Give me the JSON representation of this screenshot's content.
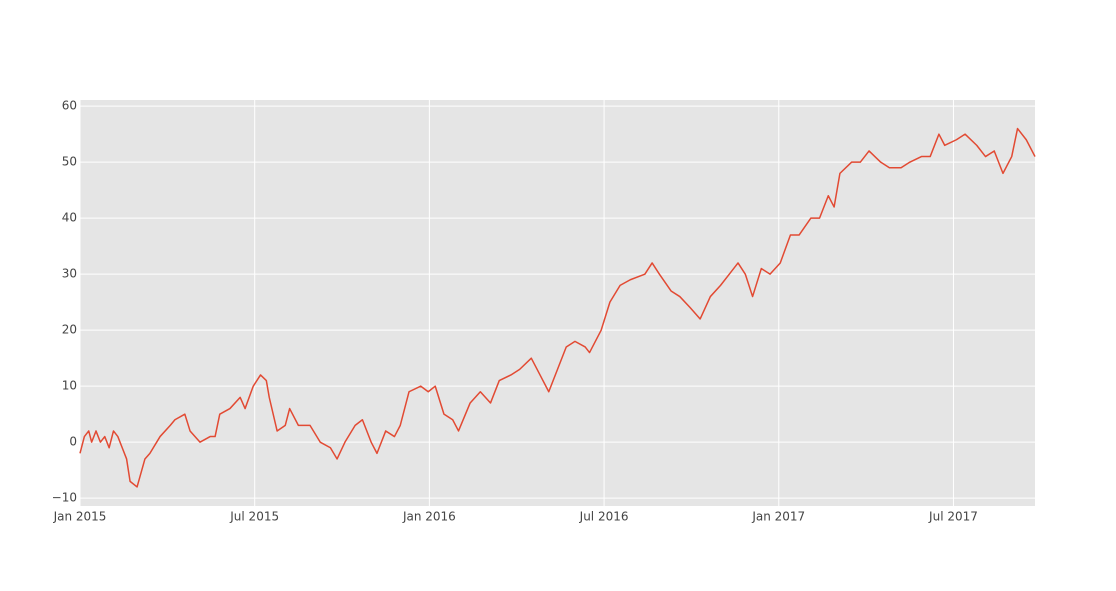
{
  "chart_data": {
    "type": "line",
    "x": [
      0,
      0.15,
      0.3,
      0.4,
      0.55,
      0.7,
      0.85,
      1.0,
      1.15,
      1.3,
      1.45,
      1.6,
      1.72,
      1.96,
      2.23,
      2.4,
      2.75,
      3.1,
      3.26,
      3.6,
      3.78,
      4.12,
      4.47,
      4.64,
      4.8,
      5.15,
      5.5,
      5.67,
      5.95,
      6.2,
      6.4,
      6.5,
      6.77,
      7.05,
      7.2,
      7.5,
      7.9,
      8.25,
      8.6,
      8.83,
      9.1,
      9.45,
      9.7,
      10.0,
      10.2,
      10.5,
      10.8,
      11.0,
      11.3,
      11.7,
      11.96,
      12.2,
      12.5,
      12.8,
      13.0,
      13.4,
      13.75,
      14.1,
      14.4,
      14.8,
      15.1,
      15.5,
      15.8,
      16.1,
      16.4,
      16.7,
      17.0,
      17.35,
      17.5,
      17.9,
      18.2,
      18.55,
      18.9,
      19.4,
      19.65,
      19.9,
      20.3,
      20.6,
      20.96,
      21.3,
      21.65,
      22.0,
      22.3,
      22.6,
      22.85,
      23.1,
      23.4,
      23.7,
      24.05,
      24.4,
      24.7,
      25.1,
      25.4,
      25.7,
      25.9,
      26.1,
      26.5,
      26.8,
      27.1,
      27.5,
      27.8,
      28.2,
      28.5,
      28.9,
      29.2,
      29.5,
      29.7,
      30.1,
      30.4,
      30.8,
      31.1,
      31.4,
      31.7,
      32.0,
      32.2,
      32.5,
      32.8
    ],
    "series": [
      {
        "color": "#e24a33",
        "values": [
          -2,
          1,
          2,
          0,
          2,
          0,
          1,
          -1,
          2,
          1,
          -1,
          -3,
          -7,
          -8,
          -3,
          -2,
          1,
          3,
          4,
          5,
          2,
          0,
          1,
          1,
          5,
          6,
          8,
          6,
          10,
          12,
          11,
          8,
          2,
          3,
          6,
          3,
          3,
          0,
          -1,
          -3,
          0,
          3,
          4,
          0,
          -2,
          2,
          1,
          3,
          9,
          10,
          9,
          10,
          5,
          4,
          2,
          7,
          9,
          7,
          11,
          12,
          13,
          15,
          12,
          9,
          13,
          17,
          18,
          17,
          16,
          20,
          25,
          28,
          29,
          30,
          32,
          30,
          27,
          26,
          24,
          22,
          26,
          28,
          30,
          32,
          30,
          26,
          31,
          30,
          32,
          37,
          37,
          40,
          40,
          44,
          42,
          48,
          50,
          50,
          52,
          50,
          49,
          49,
          50,
          51,
          51,
          55,
          53,
          54,
          55,
          53,
          51,
          52,
          48,
          51,
          56,
          54,
          51
        ]
      }
    ],
    "xlim": [
      0,
      32.8
    ],
    "ylim": [
      -11.4,
      61.1
    ],
    "xticks": [
      {
        "value": 0,
        "label": "Jan 2015"
      },
      {
        "value": 6,
        "label": "Jul 2015"
      },
      {
        "value": 12,
        "label": "Jan 2016"
      },
      {
        "value": 18,
        "label": "Jul 2016"
      },
      {
        "value": 24,
        "label": "Jan 2017"
      },
      {
        "value": 30,
        "label": "Jul 2017"
      }
    ],
    "yticks": [
      {
        "value": -10,
        "label": "−10"
      },
      0,
      10,
      20,
      30,
      40,
      50,
      60
    ],
    "grid": true
  }
}
